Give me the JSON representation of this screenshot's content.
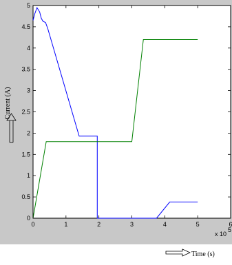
{
  "chart_data": {
    "type": "line",
    "title": "",
    "xlabel": "Time (s)",
    "ylabel": "Current (A)",
    "x_exponent_label": "x 10",
    "x_exponent_power": "5",
    "xlim": [
      0,
      6
    ],
    "ylim": [
      0,
      5
    ],
    "x_ticks": [
      "0",
      "1",
      "2",
      "3",
      "4",
      "5",
      "6"
    ],
    "y_ticks": [
      "0",
      "0.5",
      "1",
      "1.5",
      "2",
      "2.5",
      "3",
      "3.5",
      "4",
      "4.5",
      "5"
    ],
    "grid": false,
    "series": [
      {
        "color": "#0000ff",
        "x": [
          0,
          0.05,
          0.12,
          0.2,
          0.25,
          0.3,
          0.38,
          0.45,
          1.4,
          1.95,
          1.95,
          3.75,
          4.15,
          5.0
        ],
        "y": [
          4.65,
          4.8,
          4.95,
          4.85,
          4.7,
          4.63,
          4.6,
          4.45,
          1.93,
          1.93,
          0,
          0,
          0.38,
          0.38
        ]
      },
      {
        "color": "#008000",
        "x": [
          0,
          0.4,
          3.0,
          3.35,
          5.0
        ],
        "y": [
          0,
          1.8,
          1.8,
          4.2,
          4.2
        ]
      }
    ]
  }
}
